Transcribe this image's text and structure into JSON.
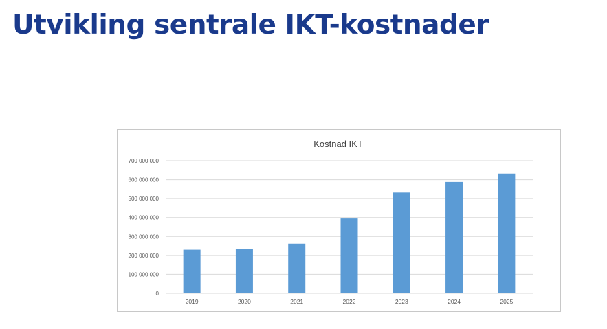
{
  "slide": {
    "title": "Utvikling sentrale IKT-kostnader"
  },
  "colors": {
    "title": "#1a3a8c",
    "bar": "#5b9bd5",
    "gridline": "#d9d9d9"
  },
  "chart_data": {
    "type": "bar",
    "title": "Kostnad IKT",
    "xlabel": "",
    "ylabel": "",
    "categories": [
      "2019",
      "2020",
      "2021",
      "2022",
      "2023",
      "2024",
      "2025"
    ],
    "values": [
      230000000,
      235000000,
      262000000,
      395000000,
      532000000,
      588000000,
      632000000
    ],
    "ylim": [
      0,
      700000000
    ],
    "yticks": [
      0,
      100000000,
      200000000,
      300000000,
      400000000,
      500000000,
      600000000,
      700000000
    ],
    "ytick_labels": [
      "0",
      "100 000 000",
      "200 000 000",
      "300 000 000",
      "400 000 000",
      "500 000 000",
      "600 000 000",
      "700 000 000"
    ],
    "grid": true,
    "legend": "none"
  }
}
